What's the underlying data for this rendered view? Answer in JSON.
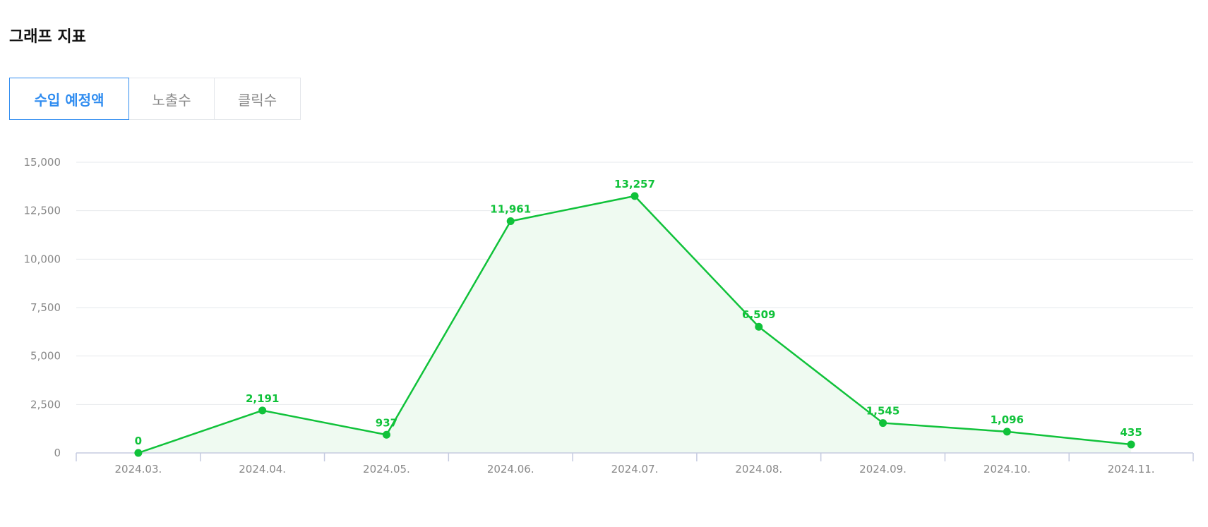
{
  "header": {
    "title": "그래프 지표"
  },
  "tabs": [
    {
      "label": "수입 예정액",
      "active": true
    },
    {
      "label": "노출수",
      "active": false
    },
    {
      "label": "클릭수",
      "active": false
    }
  ],
  "colors": {
    "line": "#10c23a",
    "area": "#effaf1",
    "grid": "#e6e9ec",
    "axis": "#c5cbe0",
    "tab_active": "#2f8cf0"
  },
  "chart_data": {
    "type": "line",
    "title": "",
    "xlabel": "",
    "ylabel": "",
    "categories": [
      "2024.03.",
      "2024.04.",
      "2024.05.",
      "2024.06.",
      "2024.07.",
      "2024.08.",
      "2024.09.",
      "2024.10.",
      "2024.11."
    ],
    "values": [
      0,
      2191,
      937,
      11961,
      13257,
      6509,
      1545,
      1096,
      435
    ],
    "value_labels": [
      "0",
      "2,191",
      "937",
      "11,961",
      "13,257",
      "6,509",
      "1,545",
      "1,096",
      "435"
    ],
    "y_ticks": [
      0,
      2500,
      5000,
      7500,
      10000,
      12500,
      15000
    ],
    "y_tick_labels": [
      "0",
      "2,500",
      "5,000",
      "7,500",
      "10,000",
      "12,500",
      "15,000"
    ],
    "ylim": [
      0,
      15000
    ],
    "grid": true,
    "legend": "none",
    "fill_area": true
  }
}
